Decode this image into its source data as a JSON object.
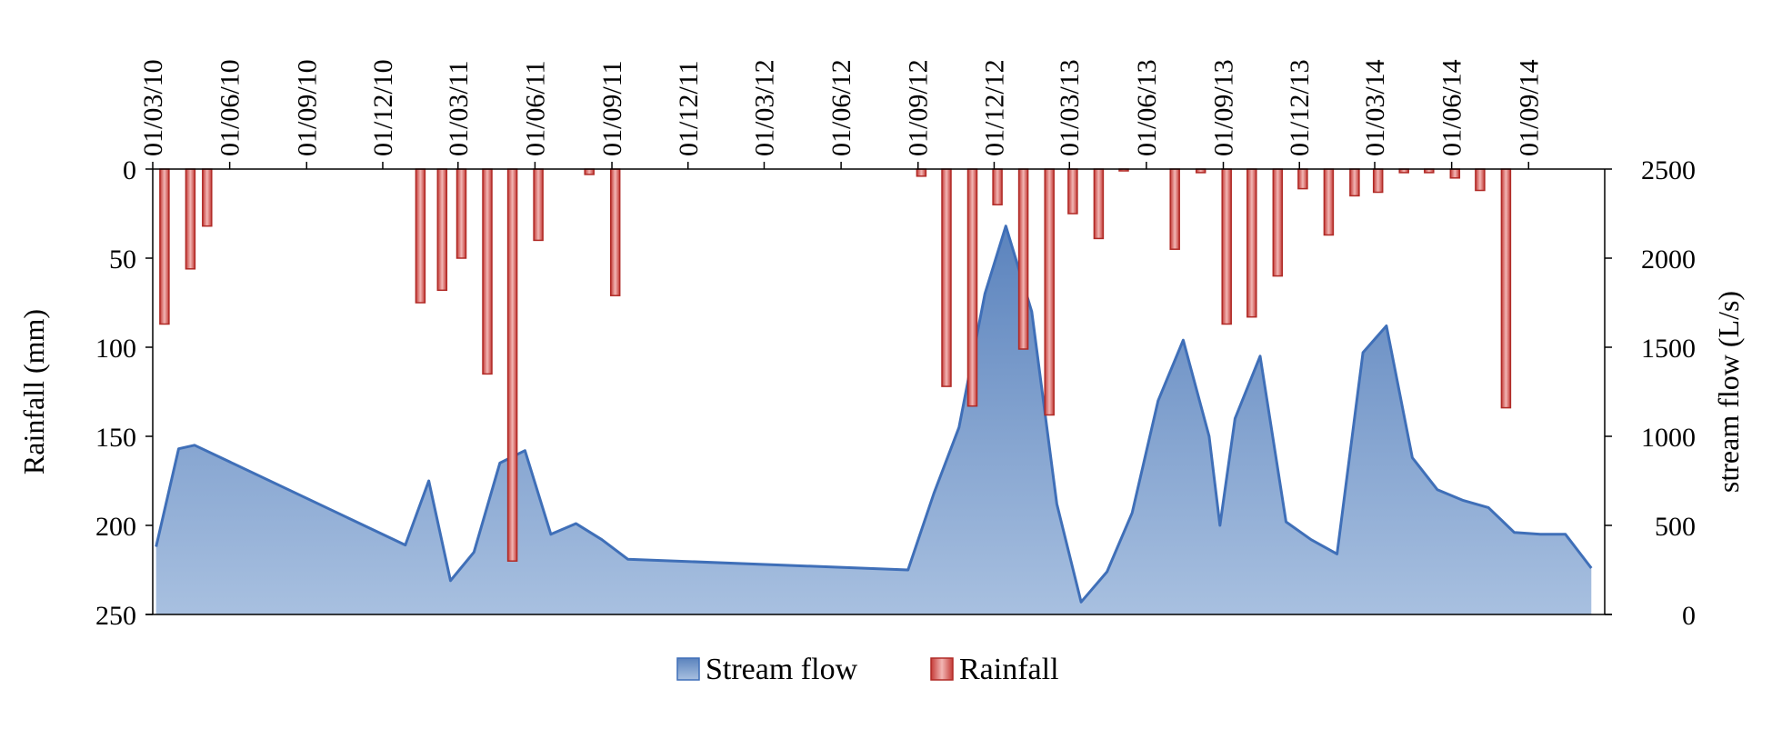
{
  "chart_data": {
    "type": "bar+area",
    "x_ticks": [
      "01/03/10",
      "01/06/10",
      "01/09/10",
      "01/12/10",
      "01/03/11",
      "01/06/11",
      "01/09/11",
      "01/12/11",
      "01/03/12",
      "01/06/12",
      "01/09/12",
      "01/12/12",
      "01/03/13",
      "01/06/13",
      "01/09/13",
      "01/12/13",
      "01/03/14",
      "01/06/14",
      "01/09/14"
    ],
    "x_range": [
      "2010-03-01",
      "2014-12-01"
    ],
    "y_left": {
      "label": "Rainfall (mm)",
      "ticks": [
        "0",
        "50",
        "100",
        "150",
        "200",
        "250"
      ],
      "range": [
        0,
        250
      ],
      "inverted": true
    },
    "y_right": {
      "label": "stream flow  (L/s)",
      "ticks": [
        "0",
        "500",
        "1000",
        "1500",
        "2000",
        "2500"
      ],
      "range": [
        0,
        2500
      ]
    },
    "legend": {
      "position": "bottom-center",
      "items": [
        "Stream flow",
        "Rainfall"
      ]
    },
    "grid": false,
    "colors": {
      "stream_flow_top": "#5b83bd",
      "stream_flow_bottom": "#a8c0e0",
      "stream_flow_line": "#3f6fb8",
      "rainfall_fill": "#d9534f",
      "rainfall_edge": "#b02a26"
    },
    "series": [
      {
        "name": "Stream flow",
        "kind": "area",
        "axis": "right",
        "points": [
          [
            "2010-03-05",
            380
          ],
          [
            "2010-04-01",
            930
          ],
          [
            "2010-04-20",
            950
          ],
          [
            "2010-12-28",
            390
          ],
          [
            "2011-01-25",
            750
          ],
          [
            "2011-02-20",
            190
          ],
          [
            "2011-03-20",
            350
          ],
          [
            "2011-04-20",
            850
          ],
          [
            "2011-05-20",
            920
          ],
          [
            "2011-06-20",
            450
          ],
          [
            "2011-07-20",
            510
          ],
          [
            "2011-08-20",
            420
          ],
          [
            "2011-09-20",
            310
          ],
          [
            "2012-08-20",
            250
          ],
          [
            "2012-09-20",
            680
          ],
          [
            "2012-10-20",
            1050
          ],
          [
            "2012-11-20",
            1800
          ],
          [
            "2012-12-15",
            2180
          ],
          [
            "2013-01-15",
            1700
          ],
          [
            "2013-02-14",
            620
          ],
          [
            "2013-03-15",
            70
          ],
          [
            "2013-04-15",
            240
          ],
          [
            "2013-05-15",
            570
          ],
          [
            "2013-06-15",
            1200
          ],
          [
            "2013-07-15",
            1540
          ],
          [
            "2013-08-15",
            1000
          ],
          [
            "2013-08-28",
            500
          ],
          [
            "2013-09-15",
            1100
          ],
          [
            "2013-10-15",
            1450
          ],
          [
            "2013-11-15",
            520
          ],
          [
            "2013-12-15",
            420
          ],
          [
            "2014-01-15",
            340
          ],
          [
            "2014-02-15",
            1470
          ],
          [
            "2014-03-15",
            1620
          ],
          [
            "2014-04-15",
            880
          ],
          [
            "2014-05-15",
            700
          ],
          [
            "2014-06-15",
            640
          ],
          [
            "2014-07-15",
            600
          ],
          [
            "2014-08-15",
            460
          ],
          [
            "2014-09-15",
            450
          ],
          [
            "2014-10-15",
            450
          ],
          [
            "2014-11-15",
            260
          ]
        ]
      },
      {
        "name": "Rainfall",
        "kind": "bar",
        "axis": "left",
        "points": [
          [
            "2010-03-15",
            87
          ],
          [
            "2010-04-15",
            56
          ],
          [
            "2010-05-05",
            32
          ],
          [
            "2011-01-15",
            75
          ],
          [
            "2011-02-10",
            68
          ],
          [
            "2011-03-05",
            50
          ],
          [
            "2011-04-05",
            115
          ],
          [
            "2011-05-05",
            220
          ],
          [
            "2011-06-05",
            40
          ],
          [
            "2011-08-05",
            3
          ],
          [
            "2011-09-05",
            71
          ],
          [
            "2012-09-05",
            4
          ],
          [
            "2012-10-05",
            122
          ],
          [
            "2012-11-05",
            133
          ],
          [
            "2012-12-05",
            20
          ],
          [
            "2013-01-05",
            101
          ],
          [
            "2013-02-05",
            138
          ],
          [
            "2013-03-05",
            25
          ],
          [
            "2013-04-05",
            39
          ],
          [
            "2013-05-05",
            1
          ],
          [
            "2013-07-05",
            45
          ],
          [
            "2013-08-05",
            2
          ],
          [
            "2013-09-05",
            87
          ],
          [
            "2013-10-05",
            83
          ],
          [
            "2013-11-05",
            60
          ],
          [
            "2013-12-05",
            11
          ],
          [
            "2014-01-05",
            37
          ],
          [
            "2014-02-05",
            15
          ],
          [
            "2014-03-05",
            13
          ],
          [
            "2014-04-05",
            2
          ],
          [
            "2014-05-05",
            2
          ],
          [
            "2014-06-05",
            5
          ],
          [
            "2014-07-05",
            12
          ],
          [
            "2014-08-05",
            134
          ]
        ]
      }
    ]
  }
}
